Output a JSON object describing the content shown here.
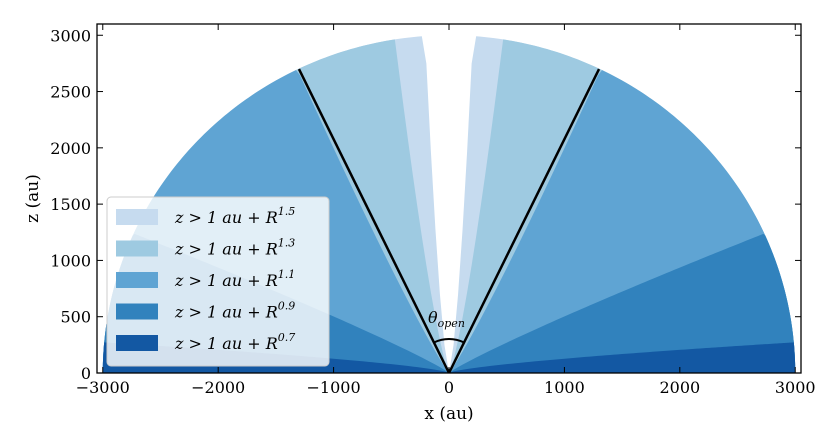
{
  "chart_data": {
    "type": "area",
    "title": "",
    "xlabel": "x (au)",
    "ylabel": "z (au)",
    "xlim": [
      -3050,
      3050
    ],
    "ylim": [
      0,
      3100
    ],
    "xticks": [
      -3000,
      -2000,
      -1000,
      0,
      1000,
      2000,
      3000
    ],
    "xtick_labels": [
      "−3000",
      "−2000",
      "−1000",
      "0",
      "1000",
      "2000",
      "3000"
    ],
    "yticks": [
      0,
      500,
      1000,
      1500,
      2000,
      2500,
      3000
    ],
    "ytick_labels": [
      "0",
      "500",
      "1000",
      "1500",
      "2000",
      "2500",
      "3000"
    ],
    "grid": false,
    "legend_position": "center-left",
    "radius_au": 3000,
    "series": [
      {
        "name": "z > 1 au + R^1.5",
        "label_main": "z > 1 au + R",
        "label_exp": "1.5",
        "exponent": 1.5,
        "color": "#c6dbef"
      },
      {
        "name": "z > 1 au + R^1.3",
        "label_main": "z > 1 au + R",
        "label_exp": "1.3",
        "exponent": 1.3,
        "color": "#9ecae1"
      },
      {
        "name": "z > 1 au + R^1.1",
        "label_main": "z > 1 au + R",
        "label_exp": "1.1",
        "exponent": 1.1,
        "color": "#5fa4d3"
      },
      {
        "name": "z > 1 au + R^0.9",
        "label_main": "z > 1 au + R",
        "label_exp": "0.9",
        "exponent": 0.9,
        "color": "#3182bd"
      },
      {
        "name": "z > 1 au + R^0.7",
        "label_main": "z > 1 au + R",
        "label_exp": "0.7",
        "exponent": 0.7,
        "color": "#1358a3"
      }
    ],
    "opening_lines": [
      {
        "x": -1300,
        "z": 2700
      },
      {
        "x": 1300,
        "z": 2700
      }
    ],
    "annotation": {
      "main": "θ",
      "sub": "open"
    }
  }
}
